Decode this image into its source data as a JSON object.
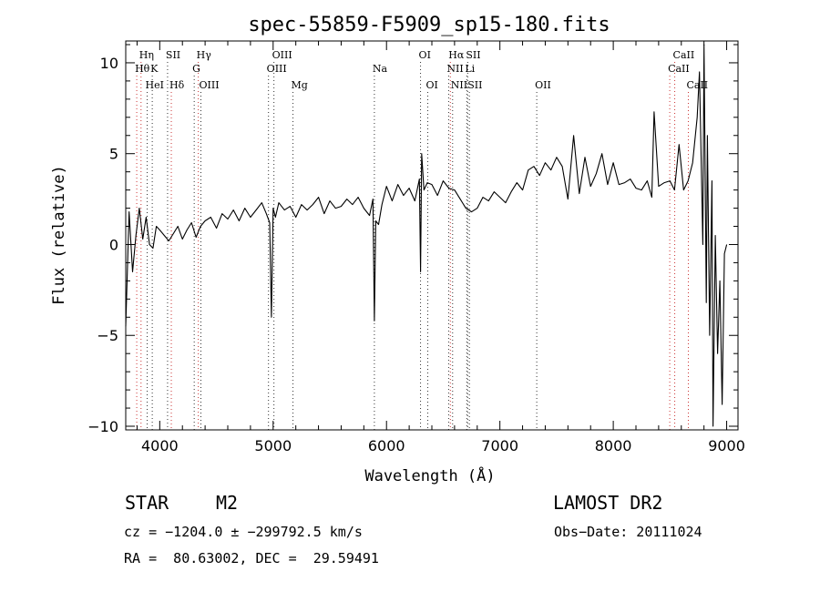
{
  "chart_data": {
    "type": "line",
    "title": "spec-55859-F5909_sp15-180.fits",
    "xlabel": "Wavelength (Å)",
    "ylabel": "Flux (relative)",
    "xlim": [
      3700,
      9100
    ],
    "ylim": [
      -10.2,
      11.2
    ],
    "xticks": [
      4000,
      5000,
      6000,
      7000,
      8000,
      9000
    ],
    "xtick_labels": [
      "4000",
      "5000",
      "6000",
      "7000",
      "8000",
      "9000"
    ],
    "yticks": [
      -10,
      -5,
      0,
      5,
      10
    ],
    "ytick_labels": [
      "−10",
      "−5",
      "0",
      "5",
      "10"
    ],
    "grid": false,
    "spectrum": {
      "x": [
        3700,
        3730,
        3760,
        3790,
        3820,
        3850,
        3880,
        3910,
        3940,
        3970,
        4000,
        4040,
        4080,
        4120,
        4160,
        4200,
        4240,
        4280,
        4320,
        4360,
        4400,
        4450,
        4500,
        4550,
        4600,
        4650,
        4700,
        4750,
        4800,
        4850,
        4900,
        4940,
        4970,
        4985,
        5000,
        5020,
        5050,
        5100,
        5150,
        5200,
        5250,
        5300,
        5350,
        5400,
        5450,
        5500,
        5550,
        5600,
        5650,
        5700,
        5750,
        5800,
        5850,
        5880,
        5893,
        5905,
        5930,
        5960,
        6000,
        6050,
        6100,
        6150,
        6200,
        6250,
        6290,
        6300,
        6310,
        6330,
        6360,
        6400,
        6450,
        6500,
        6550,
        6600,
        6650,
        6700,
        6750,
        6800,
        6850,
        6900,
        6950,
        7000,
        7050,
        7100,
        7150,
        7200,
        7250,
        7300,
        7350,
        7400,
        7450,
        7500,
        7550,
        7600,
        7650,
        7700,
        7750,
        7800,
        7850,
        7900,
        7950,
        8000,
        8050,
        8100,
        8150,
        8200,
        8250,
        8300,
        8340,
        8360,
        8400,
        8450,
        8500,
        8540,
        8580,
        8620,
        8660,
        8700,
        8740,
        8760,
        8790,
        8800,
        8820,
        8830,
        8850,
        8870,
        8880,
        8900,
        8920,
        8940,
        8960,
        8980,
        9000
      ],
      "y": [
        -4.5,
        1.8,
        -1.5,
        0.5,
        2.0,
        0.3,
        1.5,
        0.0,
        -0.2,
        1.0,
        0.8,
        0.5,
        0.2,
        0.6,
        1.0,
        0.3,
        0.8,
        1.2,
        0.4,
        1.0,
        1.3,
        1.5,
        0.9,
        1.7,
        1.4,
        1.9,
        1.3,
        2.0,
        1.5,
        1.9,
        2.3,
        1.7,
        1.2,
        -4.0,
        2.0,
        1.5,
        2.3,
        1.9,
        2.1,
        1.5,
        2.2,
        1.9,
        2.2,
        2.6,
        1.7,
        2.4,
        2.0,
        2.1,
        2.5,
        2.2,
        2.6,
        2.0,
        1.6,
        2.5,
        -4.2,
        1.3,
        1.1,
        2.2,
        3.2,
        2.4,
        3.3,
        2.7,
        3.1,
        2.4,
        3.6,
        -1.5,
        5.0,
        3.0,
        3.4,
        3.3,
        2.7,
        3.5,
        3.1,
        3.0,
        2.5,
        2.0,
        1.8,
        2.0,
        2.6,
        2.4,
        2.9,
        2.6,
        2.3,
        2.9,
        3.4,
        3.0,
        4.1,
        4.3,
        3.8,
        4.5,
        4.1,
        4.8,
        4.3,
        2.5,
        6.0,
        2.8,
        4.8,
        3.2,
        3.9,
        5.0,
        3.3,
        4.5,
        3.3,
        3.4,
        3.6,
        3.1,
        3.0,
        3.5,
        2.6,
        7.3,
        3.2,
        3.4,
        3.5,
        3.0,
        5.5,
        3.0,
        3.5,
        4.5,
        7.0,
        9.5,
        0.0,
        11.0,
        -3.2,
        6.0,
        -5.0,
        3.5,
        -10.0,
        0.5,
        -6.0,
        -2.0,
        -8.8,
        -0.5,
        0.0
      ]
    },
    "line_markers": [
      {
        "label": "Hη",
        "wave": 3835,
        "color": "#cc3333",
        "row": 1
      },
      {
        "label": "Hθ",
        "wave": 3797,
        "color": "#cc3333",
        "row": 2
      },
      {
        "label": "K",
        "wave": 3934,
        "color": "#333333",
        "row": 2
      },
      {
        "label": "HeI",
        "wave": 3889,
        "color": "#333333",
        "row": 3
      },
      {
        "label": "SII",
        "wave": 4069,
        "color": "#333333",
        "row": 1
      },
      {
        "label": "Hδ",
        "wave": 4102,
        "color": "#cc3333",
        "row": 3
      },
      {
        "label": "Hγ",
        "wave": 4340,
        "color": "#cc3333",
        "row": 1
      },
      {
        "label": "G",
        "wave": 4304,
        "color": "#333333",
        "row": 2
      },
      {
        "label": "OIII",
        "wave": 4363,
        "color": "#333333",
        "row": 3
      },
      {
        "label": "OIII",
        "wave": 5007,
        "color": "#333333",
        "row": 1
      },
      {
        "label": "OIII",
        "wave": 4959,
        "color": "#333333",
        "row": 2
      },
      {
        "label": "Mg",
        "wave": 5175,
        "color": "#333333",
        "row": 3
      },
      {
        "label": "Na",
        "wave": 5893,
        "color": "#333333",
        "row": 2
      },
      {
        "label": "OI",
        "wave": 6300,
        "color": "#333333",
        "row": 1
      },
      {
        "label": "OI",
        "wave": 6364,
        "color": "#333333",
        "row": 3
      },
      {
        "label": "Hα",
        "wave": 6563,
        "color": "#cc3333",
        "row": 1
      },
      {
        "label": "SII",
        "wave": 6716,
        "color": "#333333",
        "row": 1
      },
      {
        "label": "NII",
        "wave": 6548,
        "color": "#333333",
        "row": 2
      },
      {
        "label": "Li",
        "wave": 6708,
        "color": "#333333",
        "row": 2
      },
      {
        "label": "NII",
        "wave": 6583,
        "color": "#333333",
        "row": 3
      },
      {
        "label": "SII",
        "wave": 6731,
        "color": "#333333",
        "row": 3
      },
      {
        "label": "OII",
        "wave": 7325,
        "color": "#333333",
        "row": 3
      },
      {
        "label": "CaII",
        "wave": 8542,
        "color": "#cc3333",
        "row": 1
      },
      {
        "label": "CaII",
        "wave": 8498,
        "color": "#cc3333",
        "row": 2
      },
      {
        "label": "CaII",
        "wave": 8662,
        "color": "#cc3333",
        "row": 3
      }
    ]
  },
  "footer": {
    "object_type": "STAR",
    "subclass": "M2",
    "survey": "LAMOST DR2",
    "redshift_line": "cz = −1204.0 ± −299792.5 km/s",
    "obs_date_line": "Obs−Date: 20111024",
    "coords_line": "RA =  80.63002, DEC =  29.59491"
  }
}
